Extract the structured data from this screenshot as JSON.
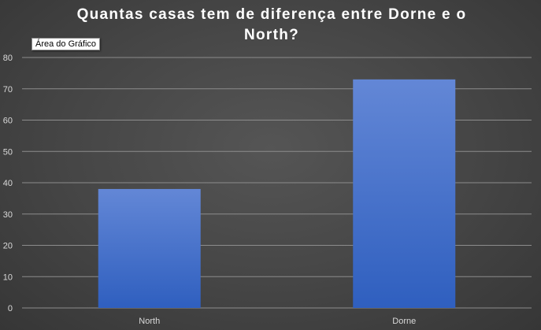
{
  "chart_data": {
    "type": "bar",
    "title": "Quantas casas tem de diferença entre Dorne e o North?",
    "categories": [
      "North",
      "Dorne"
    ],
    "values": [
      38,
      73
    ],
    "ylim": [
      0,
      80
    ],
    "yticks": [
      0,
      10,
      20,
      30,
      40,
      50,
      60,
      70,
      80
    ],
    "grid": true,
    "legend": "none",
    "xlabel": "",
    "ylabel": ""
  },
  "tooltip": {
    "text": "Área do Gráfico"
  },
  "colors": {
    "bar_top": "#6387d6",
    "bar_bottom": "#2f5fbf",
    "grid": "#8c8c8c",
    "text": "#d9d9d9",
    "title": "#ffffff"
  }
}
